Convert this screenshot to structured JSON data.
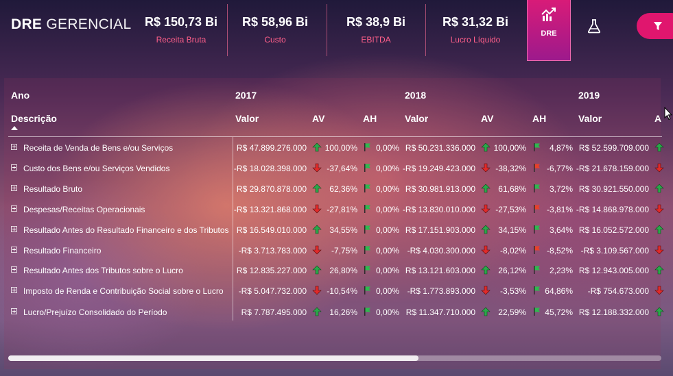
{
  "header": {
    "title_bold": "DRE",
    "title_light": "GERENCIAL",
    "kpis": [
      {
        "value": "R$ 150,73 Bi",
        "label": "Receita Bruta"
      },
      {
        "value": "R$ 58,96 Bi",
        "label": "Custo"
      },
      {
        "value": "R$ 38,9 Bi",
        "label": "EBITDA"
      },
      {
        "value": "R$ 31,32 Bi",
        "label": "Lucro Líquido"
      }
    ],
    "dre_tab_label": "DRE"
  },
  "colors": {
    "accent": "#e0166e",
    "up": "#2aa84a",
    "down": "#e02a2a",
    "flag_green": "#2fb84f",
    "flag_red": "#e8402a"
  },
  "table": {
    "year_header": "Ano",
    "desc_header": "Descrição",
    "years": [
      "2017",
      "2018",
      "2019"
    ],
    "col_valor": "Valor",
    "col_av": "AV",
    "col_ah": "AH",
    "col_partial": "A",
    "rows": [
      {
        "desc": "Receita de Venda de Bens e/ou Serviços",
        "v2017": "R$ 47.899.276.000",
        "av2017": "100,00%",
        "ah2017": "0,00%",
        "v2018": "R$ 50.231.336.000",
        "av2018": "100,00%",
        "ah2018": "4,87%",
        "v2019": "R$ 52.599.709.000",
        "av_dir": [
          "up",
          "up",
          "up"
        ],
        "ah_flag": [
          "green",
          "green"
        ]
      },
      {
        "desc": "Custo dos Bens e/ou Serviços Vendidos",
        "v2017": "-R$ 18.028.398.000",
        "av2017": "-37,64%",
        "ah2017": "0,00%",
        "v2018": "-R$ 19.249.423.000",
        "av2018": "-38,32%",
        "ah2018": "-6,77%",
        "v2019": "-R$ 21.678.159.000",
        "av_dir": [
          "down",
          "down",
          "down"
        ],
        "ah_flag": [
          "green",
          "red"
        ]
      },
      {
        "desc": "Resultado Bruto",
        "v2017": "R$ 29.870.878.000",
        "av2017": "62,36%",
        "ah2017": "0,00%",
        "v2018": "R$ 30.981.913.000",
        "av2018": "61,68%",
        "ah2018": "3,72%",
        "v2019": "R$ 30.921.550.000",
        "av_dir": [
          "up",
          "up",
          "up"
        ],
        "ah_flag": [
          "green",
          "green"
        ]
      },
      {
        "desc": "Despesas/Receitas Operacionais",
        "v2017": "-R$ 13.321.868.000",
        "av2017": "-27,81%",
        "ah2017": "0,00%",
        "v2018": "-R$ 13.830.010.000",
        "av2018": "-27,53%",
        "ah2018": "-3,81%",
        "v2019": "-R$ 14.868.978.000",
        "av_dir": [
          "down",
          "down",
          "down"
        ],
        "ah_flag": [
          "green",
          "red"
        ]
      },
      {
        "desc": "Resultado Antes do Resultado Financeiro e dos Tributos",
        "v2017": "R$ 16.549.010.000",
        "av2017": "34,55%",
        "ah2017": "0,00%",
        "v2018": "R$ 17.151.903.000",
        "av2018": "34,15%",
        "ah2018": "3,64%",
        "v2019": "R$ 16.052.572.000",
        "av_dir": [
          "up",
          "up",
          "up"
        ],
        "ah_flag": [
          "green",
          "green"
        ]
      },
      {
        "desc": "Resultado Financeiro",
        "v2017": "-R$ 3.713.783.000",
        "av2017": "-7,75%",
        "ah2017": "0,00%",
        "v2018": "-R$ 4.030.300.000",
        "av2018": "-8,02%",
        "ah2018": "-8,52%",
        "v2019": "-R$ 3.109.567.000",
        "av_dir": [
          "down",
          "down",
          "down"
        ],
        "ah_flag": [
          "green",
          "red"
        ]
      },
      {
        "desc": "Resultado Antes dos Tributos sobre o Lucro",
        "v2017": "R$ 12.835.227.000",
        "av2017": "26,80%",
        "ah2017": "0,00%",
        "v2018": "R$ 13.121.603.000",
        "av2018": "26,12%",
        "ah2018": "2,23%",
        "v2019": "R$ 12.943.005.000",
        "av_dir": [
          "up",
          "up",
          "up"
        ],
        "ah_flag": [
          "green",
          "green"
        ]
      },
      {
        "desc": "Imposto de Renda e Contribuição Social sobre o Lucro",
        "v2017": "-R$ 5.047.732.000",
        "av2017": "-10,54%",
        "ah2017": "0,00%",
        "v2018": "-R$ 1.773.893.000",
        "av2018": "-3,53%",
        "ah2018": "64,86%",
        "v2019": "-R$ 754.673.000",
        "av_dir": [
          "down",
          "down",
          "down"
        ],
        "ah_flag": [
          "green",
          "green"
        ]
      },
      {
        "desc": "Lucro/Prejuízo Consolidado do Período",
        "v2017": "R$ 7.787.495.000",
        "av2017": "16,26%",
        "ah2017": "0,00%",
        "v2018": "R$ 11.347.710.000",
        "av2018": "22,59%",
        "ah2018": "45,72%",
        "v2019": "R$ 12.188.332.000",
        "av_dir": [
          "up",
          "up",
          "up"
        ],
        "ah_flag": [
          "green",
          "green"
        ]
      }
    ]
  }
}
